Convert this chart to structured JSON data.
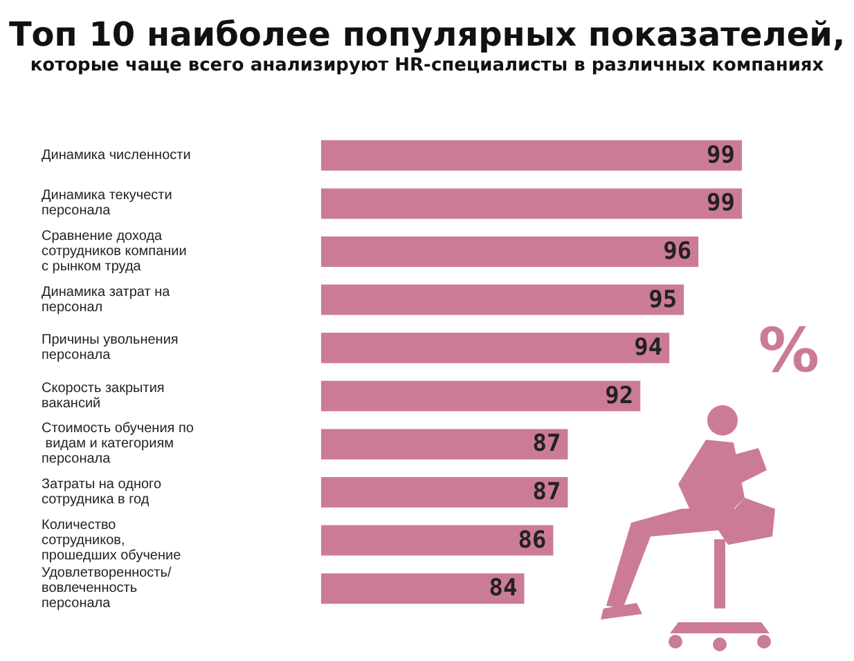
{
  "chart_data": {
    "type": "bar",
    "orientation": "horizontal",
    "title": "Топ 10 наиболее популярных показателей,",
    "subtitle": "которые чаще всего анализируют HR-специалисты в различных компаниях",
    "categories": [
      "Динамика численности",
      "Динамика текучести персонала",
      "Сравнение дохода сотрудников компании с рынком труда",
      "Динамика затрат на персонал",
      "Причины увольнения персонала",
      "Скорость закрытия вакансий",
      "Стоимость обучения по видам и категориям персонала",
      "Затраты на одного сотрудника в год",
      "Количество сотрудников, прошедших обучение",
      "Удовлетворенность/ вовлеченность персонала"
    ],
    "values": [
      99,
      99,
      96,
      95,
      94,
      92,
      87,
      87,
      86,
      84
    ],
    "color": "#cc7b97",
    "xlim": [
      70,
      101
    ],
    "tick_labels": "y",
    "data_labels": true,
    "grid": false,
    "annotations": [
      "%"
    ]
  }
}
